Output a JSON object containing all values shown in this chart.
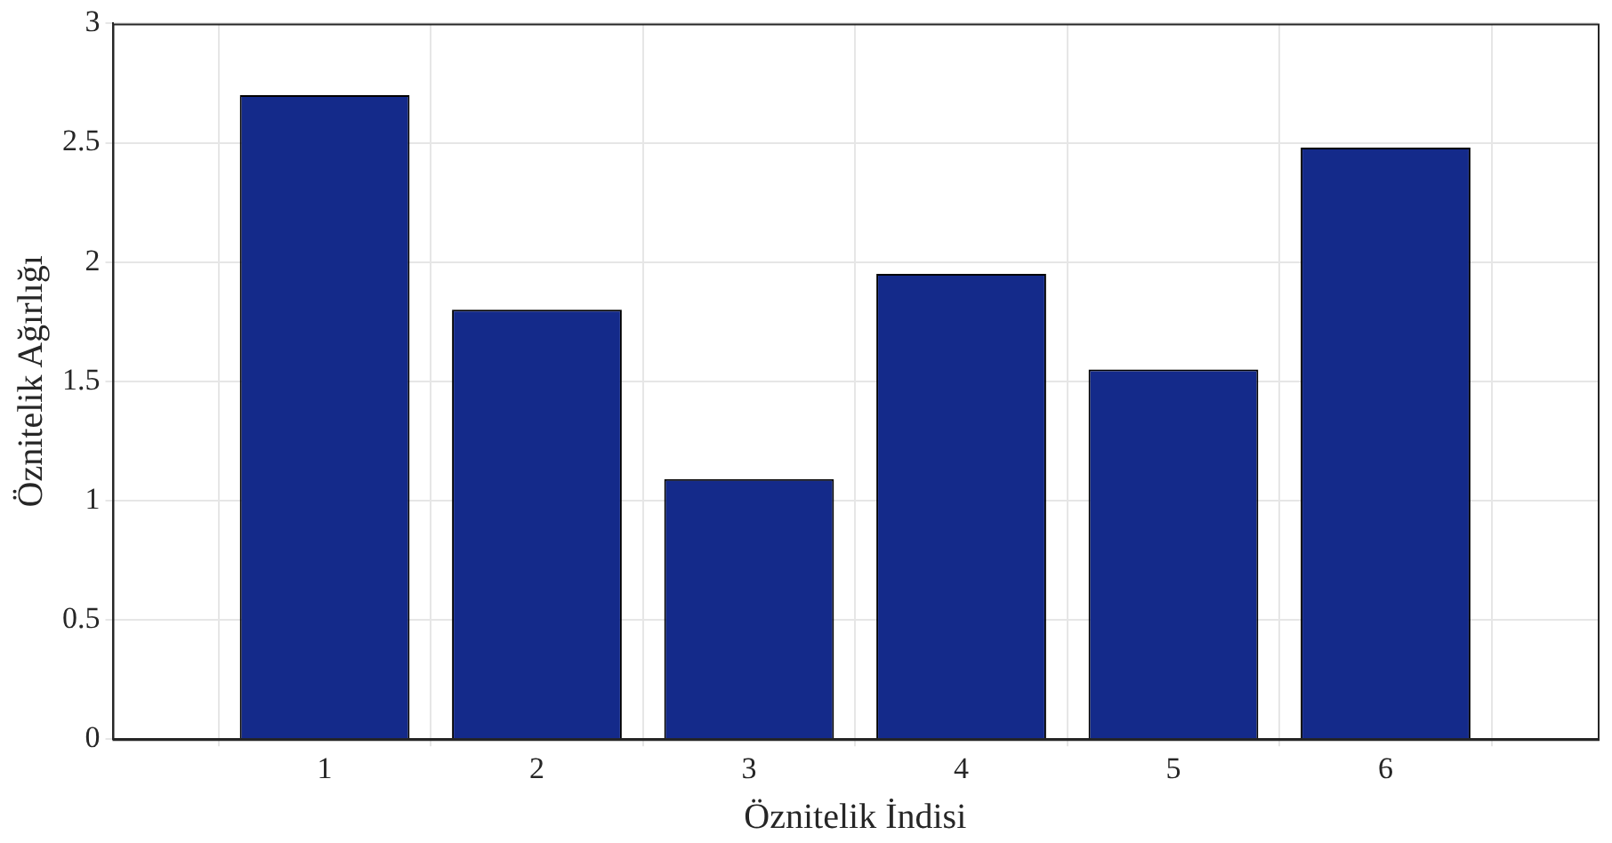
{
  "chart_data": {
    "type": "bar",
    "xlabel": "Öznitelik İndisi",
    "ylabel": "Öznitelik Ağırlığı",
    "x": [
      1,
      2,
      3,
      4,
      5,
      6
    ],
    "values": [
      2.7,
      1.8,
      1.09,
      1.95,
      1.55,
      2.48
    ],
    "color": "#142a8a",
    "xlim": [
      0,
      7
    ],
    "xticks": [
      1,
      2,
      3,
      4,
      5,
      6
    ],
    "ylim": [
      0,
      3
    ],
    "yticks": [
      0,
      0.5,
      1,
      1.5,
      2,
      2.5,
      3
    ],
    "grid": true,
    "legend": false
  }
}
